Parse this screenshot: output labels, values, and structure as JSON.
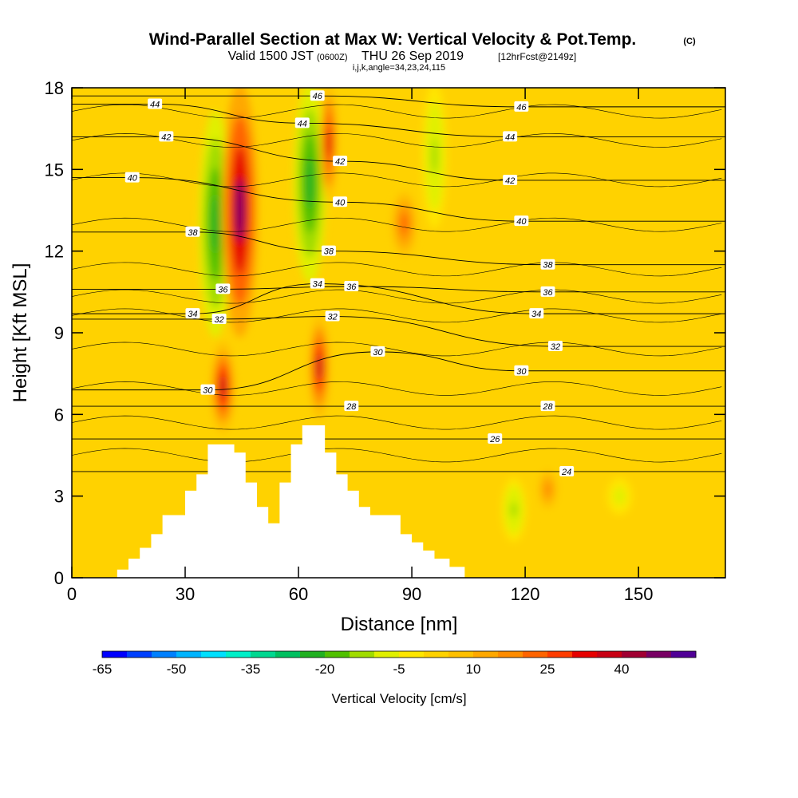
{
  "titles": {
    "main": "Wind-Parallel Section at Max W: Vertical Velocity & Pot.Temp.",
    "copyright": "(C)",
    "valid_prefix": "Valid 1500 JST",
    "valid_utc": "(0600Z)",
    "valid_date": "THU 26 Sep 2019",
    "valid_fcst": "[12hrFcst@2149z]",
    "ijk": "i,j,k,angle=34,23,24,115"
  },
  "chart_data": {
    "type": "heatmap",
    "xlabel": "Distance [nm]",
    "ylabel": "Height [Kft MSL]",
    "xlim": [
      0,
      173
    ],
    "ylim": [
      0,
      18
    ],
    "x_ticks": [
      "0",
      "30",
      "60",
      "90",
      "120",
      "150"
    ],
    "x_tick_values": [
      0,
      30,
      60,
      90,
      120,
      150
    ],
    "y_ticks": [
      "0",
      "3",
      "6",
      "9",
      "12",
      "15",
      "18"
    ],
    "y_tick_values": [
      0,
      3,
      6,
      9,
      12,
      15,
      18
    ],
    "background_color": "#ffd200",
    "updrafts": [
      {
        "name": "left-upper",
        "x": [
          41,
          48
        ],
        "y": [
          9,
          18
        ],
        "peak": 45
      },
      {
        "name": "left-lower",
        "x": [
          38,
          42
        ],
        "y": [
          5.5,
          8.5
        ],
        "peak": 35
      },
      {
        "name": "center",
        "x": [
          64,
          67
        ],
        "y": [
          6,
          9.5
        ],
        "peak": 35
      },
      {
        "name": "center-upper",
        "x": [
          67,
          69
        ],
        "y": [
          14,
          18
        ],
        "peak": 30
      },
      {
        "name": "right-upper",
        "x": [
          86,
          90
        ],
        "y": [
          12,
          14
        ],
        "peak": 20
      },
      {
        "name": "right-lower",
        "x": [
          124,
          128
        ],
        "y": [
          2.5,
          4
        ],
        "peak": 15
      }
    ],
    "downdrafts": [
      {
        "name": "left-green",
        "x": [
          35,
          41
        ],
        "y": [
          9,
          17
        ],
        "peak": -25
      },
      {
        "name": "center-green",
        "x": [
          60,
          66
        ],
        "y": [
          11,
          18
        ],
        "peak": -25
      },
      {
        "name": "right-green",
        "x": [
          94,
          98
        ],
        "y": [
          13,
          18
        ],
        "peak": -12
      },
      {
        "name": "lower-green-1",
        "x": [
          115,
          119
        ],
        "y": [
          1.5,
          3.5
        ],
        "peak": -12
      },
      {
        "name": "lower-green-2",
        "x": [
          143,
          147
        ],
        "y": [
          2.5,
          3.5
        ],
        "peak": -10
      }
    ],
    "theta_contours": [
      {
        "value": 24,
        "label": "24",
        "label_x": 131,
        "label_y": 3.9
      },
      {
        "value": 26,
        "label": "26",
        "label_x": 112,
        "label_y": 5.1
      },
      {
        "value": 28,
        "label": "28",
        "label_x": 74,
        "label_y": 6.3
      },
      {
        "value": 28,
        "label": "28",
        "label_x": 126,
        "label_y": 6.3
      },
      {
        "value": 30,
        "label": "30",
        "label_x": 36,
        "label_y": 6.9
      },
      {
        "value": 30,
        "label": "30",
        "label_x": 81,
        "label_y": 8.3
      },
      {
        "value": 30,
        "label": "30",
        "label_x": 119,
        "label_y": 7.6
      },
      {
        "value": 32,
        "label": "32",
        "label_x": 39,
        "label_y": 9.5
      },
      {
        "value": 32,
        "label": "32",
        "label_x": 69,
        "label_y": 9.6
      },
      {
        "value": 32,
        "label": "32",
        "label_x": 128,
        "label_y": 8.5
      },
      {
        "value": 34,
        "label": "34",
        "label_x": 32,
        "label_y": 9.7
      },
      {
        "value": 34,
        "label": "34",
        "label_x": 65,
        "label_y": 10.8
      },
      {
        "value": 34,
        "label": "34",
        "label_x": 123,
        "label_y": 9.7
      },
      {
        "value": 36,
        "label": "36",
        "label_x": 40,
        "label_y": 10.6
      },
      {
        "value": 36,
        "label": "36",
        "label_x": 74,
        "label_y": 10.7
      },
      {
        "value": 36,
        "label": "36",
        "label_x": 126,
        "label_y": 10.5
      },
      {
        "value": 38,
        "label": "38",
        "label_x": 32,
        "label_y": 12.7
      },
      {
        "value": 38,
        "label": "38",
        "label_x": 68,
        "label_y": 12.0
      },
      {
        "value": 38,
        "label": "38",
        "label_x": 126,
        "label_y": 11.5
      },
      {
        "value": 40,
        "label": "40",
        "label_x": 16,
        "label_y": 14.7
      },
      {
        "value": 40,
        "label": "40",
        "label_x": 71,
        "label_y": 13.8
      },
      {
        "value": 40,
        "label": "40",
        "label_x": 119,
        "label_y": 13.1
      },
      {
        "value": 42,
        "label": "42",
        "label_x": 25,
        "label_y": 16.2
      },
      {
        "value": 42,
        "label": "42",
        "label_x": 71,
        "label_y": 15.3
      },
      {
        "value": 42,
        "label": "42",
        "label_x": 116,
        "label_y": 14.6
      },
      {
        "value": 44,
        "label": "44",
        "label_x": 22,
        "label_y": 17.4
      },
      {
        "value": 44,
        "label": "44",
        "label_x": 61,
        "label_y": 16.7
      },
      {
        "value": 44,
        "label": "44",
        "label_x": 116,
        "label_y": 16.2
      },
      {
        "value": 46,
        "label": "46",
        "label_x": 65,
        "label_y": 17.7
      },
      {
        "value": 46,
        "label": "46",
        "label_x": 119,
        "label_y": 17.3
      }
    ],
    "terrain": [
      [
        0,
        0
      ],
      [
        12,
        0
      ],
      [
        12,
        0.3
      ],
      [
        15,
        0.3
      ],
      [
        15,
        0.7
      ],
      [
        18,
        0.7
      ],
      [
        18,
        1.1
      ],
      [
        21,
        1.1
      ],
      [
        21,
        1.6
      ],
      [
        24,
        1.6
      ],
      [
        24,
        2.3
      ],
      [
        30,
        2.3
      ],
      [
        30,
        3.2
      ],
      [
        33,
        3.2
      ],
      [
        33,
        3.8
      ],
      [
        36,
        3.8
      ],
      [
        36,
        4.9
      ],
      [
        43,
        4.9
      ],
      [
        43,
        4.6
      ],
      [
        46,
        4.6
      ],
      [
        46,
        3.5
      ],
      [
        49,
        3.5
      ],
      [
        49,
        2.6
      ],
      [
        52,
        2.6
      ],
      [
        52,
        2.0
      ],
      [
        55,
        2.0
      ],
      [
        55,
        3.5
      ],
      [
        58,
        3.5
      ],
      [
        58,
        4.9
      ],
      [
        61,
        4.9
      ],
      [
        61,
        5.6
      ],
      [
        67,
        5.6
      ],
      [
        67,
        4.6
      ],
      [
        70,
        4.6
      ],
      [
        70,
        3.8
      ],
      [
        73,
        3.8
      ],
      [
        73,
        3.2
      ],
      [
        76,
        3.2
      ],
      [
        76,
        2.6
      ],
      [
        79,
        2.6
      ],
      [
        79,
        2.3
      ],
      [
        87,
        2.3
      ],
      [
        87,
        1.6
      ],
      [
        90,
        1.6
      ],
      [
        90,
        1.3
      ],
      [
        93,
        1.3
      ],
      [
        93,
        1.0
      ],
      [
        96,
        1.0
      ],
      [
        96,
        0.7
      ],
      [
        100,
        0.7
      ],
      [
        100,
        0.4
      ],
      [
        104,
        0.4
      ],
      [
        104,
        0
      ],
      [
        173,
        0
      ]
    ]
  },
  "colorbar": {
    "title": "Vertical Velocity [cm/s]",
    "tick_labels": [
      "-65",
      "-50",
      "-35",
      "-20",
      "-5",
      "10",
      "25",
      "40"
    ],
    "tick_values": [
      -65,
      -50,
      -35,
      -20,
      -5,
      10,
      25,
      40
    ],
    "min": -65,
    "max": 50,
    "step": 5,
    "colors": [
      "#0000ff",
      "#0040ff",
      "#0080ff",
      "#00b4ff",
      "#00e0ff",
      "#00f0c8",
      "#00d890",
      "#00c060",
      "#20b020",
      "#50c000",
      "#a0dc00",
      "#e0f000",
      "#ffe600",
      "#ffd200",
      "#ffc000",
      "#ffa800",
      "#ff8c00",
      "#ff6400",
      "#ff3c00",
      "#e60000",
      "#c80014",
      "#a00032",
      "#780064",
      "#500096"
    ]
  }
}
